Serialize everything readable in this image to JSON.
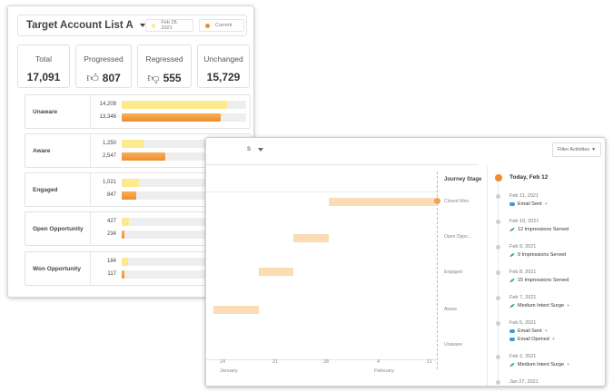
{
  "left_panel": {
    "title": "Target Account List A",
    "legend": [
      {
        "label": "Feb 28, 2021",
        "color": "#fde98e"
      },
      {
        "label": "Current",
        "color": "#ef8c2d"
      }
    ],
    "stats": [
      {
        "label": "Total",
        "value": "17,091",
        "icon": ""
      },
      {
        "label": "Progressed",
        "value": "807",
        "icon": "thumbs-up-icon"
      },
      {
        "label": "Regressed",
        "value": "555",
        "icon": "thumbs-down-icon"
      },
      {
        "label": "Unchanged",
        "value": "15,729",
        "icon": ""
      }
    ],
    "stages": [
      {
        "name": "Unaware",
        "prev": 14209,
        "prev_label": "14,209",
        "cur": 13346,
        "cur_label": "13,346"
      },
      {
        "name": "Aware",
        "prev": 1250,
        "prev_label": "1,250",
        "cur": 2547,
        "cur_label": "2,547"
      },
      {
        "name": "Engaged",
        "prev": 1021,
        "prev_label": "1,021",
        "cur": 847,
        "cur_label": "847"
      },
      {
        "name": "Open Opportunity",
        "prev": 427,
        "prev_label": "427",
        "cur": 234,
        "cur_label": "234"
      },
      {
        "name": "Won Opportunity",
        "prev": 184,
        "prev_label": "184",
        "cur": 117,
        "cur_label": "117"
      }
    ],
    "bar_max": 16800
  },
  "right_panel": {
    "title_fragment": "s",
    "filter_label": "Filter Activities",
    "journey_title": "Journey Stage",
    "journey_stages": [
      "Closed Won",
      "Open Oppo...",
      "Engaged",
      "Aware",
      "Unaware"
    ],
    "x_ticks": [
      "14",
      "21",
      "28",
      "4",
      "11"
    ],
    "months": [
      "January",
      "February"
    ],
    "timeline_today": "Today, Feb 12",
    "timeline": [
      {
        "date": "Feb 11, 2021",
        "activities": [
          {
            "icon": "salesforce-icon",
            "text": "Email Sent",
            "plus": "+"
          }
        ]
      },
      {
        "date": "Feb 10, 2021",
        "activities": [
          {
            "icon": "bombora-icon",
            "text": "12 Impressions Served",
            "plus": ""
          }
        ]
      },
      {
        "date": "Feb 9, 2021",
        "activities": [
          {
            "icon": "bombora-icon",
            "text": "9 Impressions Served",
            "plus": ""
          }
        ]
      },
      {
        "date": "Feb 8, 2021",
        "activities": [
          {
            "icon": "bombora-icon",
            "text": "15 Impressions Served",
            "plus": ""
          }
        ]
      },
      {
        "date": "Feb 7, 2021",
        "activities": [
          {
            "icon": "bombora-icon",
            "text": "Medium Intent Surge",
            "plus": "+"
          }
        ]
      },
      {
        "date": "Feb 5, 2021",
        "activities": [
          {
            "icon": "salesforce-icon",
            "text": "Email Sent",
            "plus": "+"
          },
          {
            "icon": "salesforce-icon",
            "text": "Email Opened",
            "plus": "+"
          }
        ]
      },
      {
        "date": "Feb 2, 2021",
        "activities": [
          {
            "icon": "bombora-icon",
            "text": "Medium Intent Surge",
            "plus": "+"
          }
        ]
      },
      {
        "date": "Jan 27, 2021",
        "activities": []
      }
    ]
  }
}
